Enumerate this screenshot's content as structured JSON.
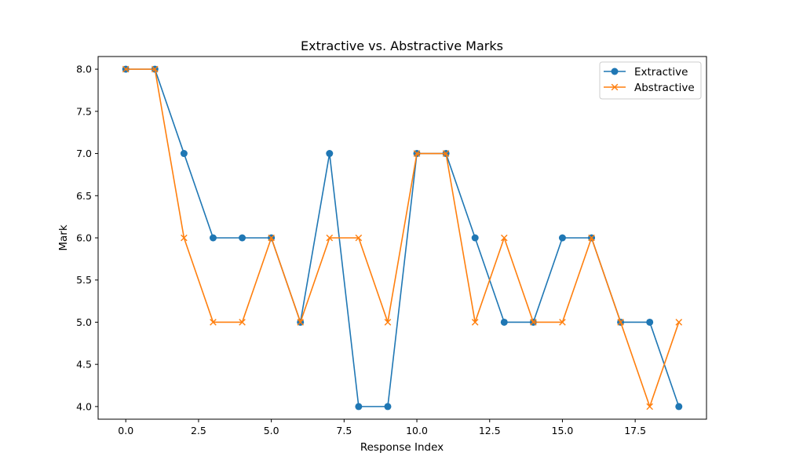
{
  "chart_data": {
    "type": "line",
    "title": "Extractive vs. Abstractive Marks",
    "xlabel": "Response Index",
    "ylabel": "Mark",
    "x": [
      0,
      1,
      2,
      3,
      4,
      5,
      6,
      7,
      8,
      9,
      10,
      11,
      12,
      13,
      14,
      15,
      16,
      17,
      18,
      19
    ],
    "xlim": [
      -0.95,
      19.95
    ],
    "ylim": [
      3.85,
      8.15
    ],
    "xticks": [
      0.0,
      2.5,
      5.0,
      7.5,
      10.0,
      12.5,
      15.0,
      17.5
    ],
    "xtick_labels": [
      "0.0",
      "2.5",
      "5.0",
      "7.5",
      "10.0",
      "12.5",
      "15.0",
      "17.5"
    ],
    "yticks": [
      4.0,
      4.5,
      5.0,
      5.5,
      6.0,
      6.5,
      7.0,
      7.5,
      8.0
    ],
    "ytick_labels": [
      "4.0",
      "4.5",
      "5.0",
      "5.5",
      "6.0",
      "6.5",
      "7.0",
      "7.5",
      "8.0"
    ],
    "grid": false,
    "legend_position": "top-right",
    "series": [
      {
        "name": "Extractive",
        "marker": "circle",
        "color": "#1f77b4",
        "values": [
          8,
          8,
          7,
          6,
          6,
          6,
          5,
          7,
          4,
          4,
          7,
          7,
          6,
          5,
          5,
          6,
          6,
          5,
          5,
          4
        ]
      },
      {
        "name": "Abstractive",
        "marker": "x",
        "color": "#ff7f0e",
        "values": [
          8,
          8,
          6,
          5,
          5,
          6,
          5,
          6,
          6,
          5,
          7,
          7,
          5,
          6,
          5,
          5,
          6,
          5,
          4,
          5
        ]
      }
    ]
  }
}
